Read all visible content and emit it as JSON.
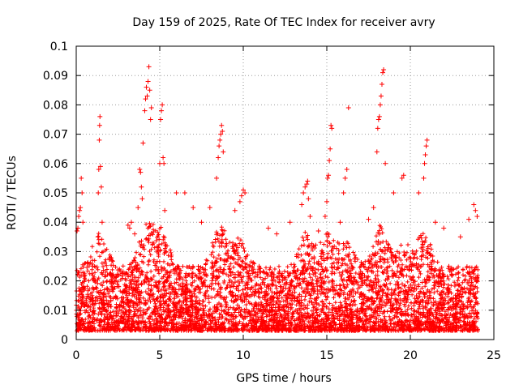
{
  "chart_data": {
    "type": "scatter",
    "title": "Day 159 of 2025, Rate Of TEC Index for receiver avry",
    "xlabel": "GPS time / hours",
    "ylabel": "ROTI / TECUs",
    "xlim": [
      0,
      25
    ],
    "ylim": [
      0,
      0.1
    ],
    "xticks": [
      0,
      5,
      10,
      15,
      20,
      25
    ],
    "xtick_labels": [
      "0",
      "5",
      "10",
      "15",
      "20",
      "25"
    ],
    "yticks": [
      0,
      0.01,
      0.02,
      0.03,
      0.04,
      0.05,
      0.06,
      0.07,
      0.08,
      0.09,
      0.1
    ],
    "ytick_labels": [
      "0",
      "0.01",
      "0.02",
      "0.03",
      "0.04",
      "0.05",
      "0.06",
      "0.07",
      "0.08",
      "0.09",
      "0.1"
    ],
    "grid": true,
    "marker": "+",
    "color": "#ff0000",
    "series": [
      {
        "name": "ROTI",
        "x": [
          0.05,
          0.1,
          0.15,
          0.2,
          0.25,
          0.3,
          0.35,
          0.4,
          1.3,
          1.32,
          1.35,
          1.38,
          1.4,
          1.42,
          1.45,
          1.5,
          1.55,
          3.1,
          3.2,
          3.3,
          3.5,
          3.7,
          3.8,
          3.85,
          3.9,
          3.95,
          4.0,
          4.1,
          4.15,
          4.2,
          4.25,
          4.3,
          4.35,
          4.4,
          4.45,
          4.5,
          5.0,
          5.05,
          5.1,
          5.15,
          5.2,
          5.25,
          5.3,
          6.0,
          6.5,
          7.0,
          7.5,
          8.0,
          8.4,
          8.5,
          8.55,
          8.6,
          8.65,
          8.7,
          8.75,
          8.8,
          9.5,
          9.8,
          9.9,
          10.0,
          10.1,
          11.5,
          12.0,
          12.8,
          13.5,
          13.6,
          13.7,
          13.8,
          13.85,
          13.9,
          14.0,
          14.5,
          14.9,
          15.0,
          15.05,
          15.1,
          15.15,
          15.2,
          15.25,
          15.3,
          15.8,
          16.0,
          16.1,
          16.2,
          16.3,
          17.5,
          17.8,
          18.0,
          18.05,
          18.1,
          18.15,
          18.2,
          18.25,
          18.3,
          18.35,
          18.4,
          18.5,
          19.0,
          19.5,
          19.6,
          20.5,
          20.8,
          20.85,
          20.9,
          20.95,
          21.0,
          21.5,
          22.0,
          23.0,
          23.5,
          23.8,
          23.9,
          24.0
        ],
        "y": [
          0.037,
          0.038,
          0.042,
          0.044,
          0.045,
          0.055,
          0.05,
          0.04,
          0.035,
          0.05,
          0.058,
          0.068,
          0.073,
          0.076,
          0.059,
          0.052,
          0.04,
          0.039,
          0.038,
          0.04,
          0.036,
          0.045,
          0.058,
          0.057,
          0.052,
          0.048,
          0.067,
          0.078,
          0.082,
          0.086,
          0.083,
          0.088,
          0.093,
          0.085,
          0.075,
          0.079,
          0.06,
          0.075,
          0.078,
          0.08,
          0.062,
          0.06,
          0.044,
          0.05,
          0.05,
          0.045,
          0.04,
          0.045,
          0.055,
          0.062,
          0.066,
          0.068,
          0.07,
          0.073,
          0.071,
          0.064,
          0.044,
          0.047,
          0.049,
          0.051,
          0.05,
          0.038,
          0.036,
          0.04,
          0.046,
          0.05,
          0.052,
          0.053,
          0.054,
          0.048,
          0.042,
          0.037,
          0.042,
          0.047,
          0.055,
          0.056,
          0.061,
          0.065,
          0.073,
          0.072,
          0.04,
          0.05,
          0.055,
          0.058,
          0.079,
          0.041,
          0.045,
          0.064,
          0.072,
          0.075,
          0.076,
          0.08,
          0.083,
          0.087,
          0.091,
          0.092,
          0.06,
          0.05,
          0.055,
          0.056,
          0.05,
          0.055,
          0.06,
          0.063,
          0.066,
          0.068,
          0.04,
          0.038,
          0.035,
          0.041,
          0.046,
          0.044,
          0.042
        ]
      }
    ]
  }
}
